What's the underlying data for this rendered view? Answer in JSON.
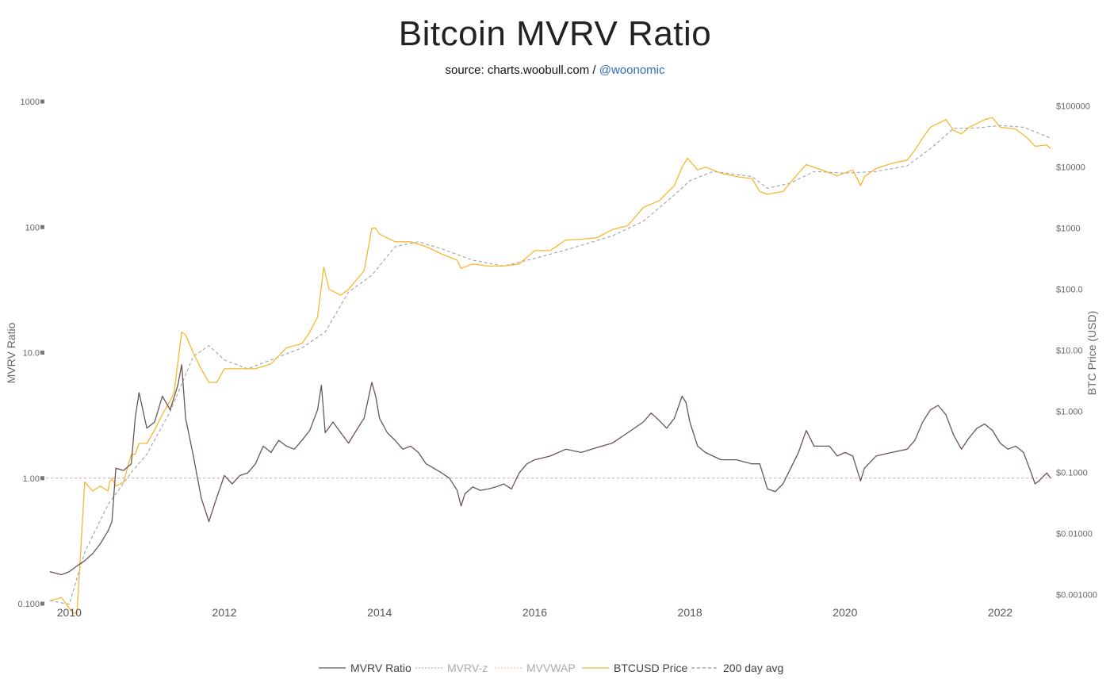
{
  "header": {
    "title": "Bitcoin MVRV Ratio",
    "source_prefix": "source: charts.woobull.com /",
    "source_handle": "@woonomic"
  },
  "colors": {
    "mvrv": "#6b5552",
    "mvrv_z": "#c8a3ae",
    "mvvwap": "#f3c8a6",
    "price": "#f7b731",
    "avg200": "#999999",
    "ref_line": "#c8a3ae"
  },
  "chart_data": {
    "type": "line",
    "title": "Bitcoin MVRV Ratio",
    "xlabel": "",
    "ylabel_left": "MVRV Ratio",
    "ylabel_right": "BTC Price (USD)",
    "x_range": [
      2009.7,
      2022.7
    ],
    "y_left_scale": "log",
    "y_left_range": [
      0.1,
      1000
    ],
    "y_right_scale": "log",
    "y_right_range": [
      0.0003,
      160000
    ],
    "x_ticks": [
      "2010",
      "2012",
      "2014",
      "2016",
      "2018",
      "2020",
      "2022"
    ],
    "y_left_ticks": [
      {
        "value": 1000,
        "label": "1000"
      },
      {
        "value": 100,
        "label": "100"
      },
      {
        "value": 10,
        "label": "10.0"
      },
      {
        "value": 1,
        "label": "1.00"
      },
      {
        "value": 0.1,
        "label": "0.100"
      }
    ],
    "y_right_ticks": [
      {
        "value": 100000,
        "label": "$100000"
      },
      {
        "value": 10000,
        "label": "$10000"
      },
      {
        "value": 1000,
        "label": "$1000"
      },
      {
        "value": 100,
        "label": "$100.0"
      },
      {
        "value": 10,
        "label": "$10.00"
      },
      {
        "value": 1,
        "label": "$1.000"
      },
      {
        "value": 0.1,
        "label": "$0.1000"
      },
      {
        "value": 0.01,
        "label": "$0.01000"
      },
      {
        "value": 0.001,
        "label": "$0.001000"
      }
    ],
    "reference_line": {
      "axis": "left",
      "value": 1.0
    },
    "legend_position": "bottom-center",
    "legend": [
      {
        "name": "MVRV Ratio",
        "style": "solid",
        "color_key": "mvrv",
        "dim": false
      },
      {
        "name": "MVRV-z",
        "style": "dotted",
        "color_key": "mvrv_z",
        "dim": true
      },
      {
        "name": "MVVWAP",
        "style": "dotted",
        "color_key": "mvvwap",
        "dim": true
      },
      {
        "name": "BTCUSD Price",
        "style": "solid",
        "color_key": "price",
        "dim": false
      },
      {
        "name": "200 day avg",
        "style": "dashed",
        "color_key": "avg200",
        "dim": false
      }
    ],
    "series": [
      {
        "name": "MVRV Ratio",
        "axis": "left",
        "x": [
          2009.75,
          2009.9,
          2010.0,
          2010.1,
          2010.2,
          2010.3,
          2010.4,
          2010.5,
          2010.55,
          2010.6,
          2010.7,
          2010.8,
          2010.85,
          2010.9,
          2011.0,
          2011.1,
          2011.2,
          2011.3,
          2011.4,
          2011.45,
          2011.5,
          2011.6,
          2011.7,
          2011.8,
          2011.9,
          2012.0,
          2012.1,
          2012.2,
          2012.3,
          2012.4,
          2012.5,
          2012.6,
          2012.7,
          2012.8,
          2012.9,
          2013.0,
          2013.1,
          2013.2,
          2013.25,
          2013.3,
          2013.4,
          2013.5,
          2013.6,
          2013.7,
          2013.8,
          2013.9,
          2013.95,
          2014.0,
          2014.1,
          2014.2,
          2014.3,
          2014.4,
          2014.5,
          2014.6,
          2014.7,
          2014.8,
          2014.9,
          2015.0,
          2015.05,
          2015.1,
          2015.2,
          2015.3,
          2015.4,
          2015.5,
          2015.6,
          2015.7,
          2015.8,
          2015.9,
          2016.0,
          2016.2,
          2016.4,
          2016.6,
          2016.8,
          2017.0,
          2017.2,
          2017.4,
          2017.5,
          2017.6,
          2017.7,
          2017.8,
          2017.9,
          2017.95,
          2018.0,
          2018.1,
          2018.2,
          2018.4,
          2018.6,
          2018.8,
          2018.9,
          2019.0,
          2019.1,
          2019.2,
          2019.3,
          2019.4,
          2019.5,
          2019.6,
          2019.8,
          2019.9,
          2020.0,
          2020.1,
          2020.2,
          2020.25,
          2020.4,
          2020.6,
          2020.8,
          2020.9,
          2021.0,
          2021.1,
          2021.2,
          2021.3,
          2021.4,
          2021.5,
          2021.6,
          2021.7,
          2021.8,
          2021.9,
          2022.0,
          2022.1,
          2022.2,
          2022.3,
          2022.4,
          2022.45,
          2022.5,
          2022.6,
          2022.65
        ],
        "y": [
          0.18,
          0.17,
          0.18,
          0.2,
          0.22,
          0.25,
          0.3,
          0.38,
          0.45,
          1.2,
          1.15,
          1.3,
          3.0,
          4.8,
          2.5,
          2.8,
          4.5,
          3.5,
          5.5,
          8.0,
          3.0,
          1.5,
          0.7,
          0.45,
          0.7,
          1.05,
          0.9,
          1.05,
          1.1,
          1.3,
          1.8,
          1.6,
          2.0,
          1.8,
          1.7,
          2.0,
          2.4,
          3.5,
          5.5,
          2.3,
          2.8,
          2.3,
          1.9,
          2.4,
          3.0,
          5.8,
          4.5,
          3.0,
          2.3,
          2.0,
          1.7,
          1.8,
          1.6,
          1.3,
          1.2,
          1.1,
          1.0,
          0.8,
          0.6,
          0.75,
          0.85,
          0.8,
          0.82,
          0.85,
          0.9,
          0.82,
          1.1,
          1.3,
          1.4,
          1.5,
          1.7,
          1.6,
          1.75,
          1.9,
          2.3,
          2.8,
          3.3,
          2.9,
          2.5,
          3.0,
          4.5,
          4.0,
          2.8,
          1.8,
          1.6,
          1.4,
          1.4,
          1.3,
          1.3,
          0.82,
          0.78,
          0.9,
          1.2,
          1.6,
          2.4,
          1.8,
          1.8,
          1.5,
          1.6,
          1.5,
          0.95,
          1.2,
          1.5,
          1.6,
          1.7,
          2.0,
          2.8,
          3.5,
          3.8,
          3.2,
          2.2,
          1.7,
          2.1,
          2.5,
          2.7,
          2.4,
          1.9,
          1.7,
          1.8,
          1.6,
          1.1,
          0.9,
          0.95,
          1.1,
          1.0
        ]
      },
      {
        "name": "BTCUSD Price",
        "axis": "right",
        "x": [
          2009.75,
          2009.9,
          2010.0,
          2010.05,
          2010.1,
          2010.2,
          2010.3,
          2010.4,
          2010.5,
          2010.52,
          2010.55,
          2010.6,
          2010.7,
          2010.8,
          2010.85,
          2010.9,
          2011.0,
          2011.1,
          2011.2,
          2011.3,
          2011.35,
          2011.45,
          2011.5,
          2011.6,
          2011.7,
          2011.8,
          2011.9,
          2012.0,
          2012.2,
          2012.4,
          2012.6,
          2012.8,
          2013.0,
          2013.1,
          2013.2,
          2013.28,
          2013.35,
          2013.5,
          2013.6,
          2013.8,
          2013.9,
          2013.95,
          2014.0,
          2014.2,
          2014.4,
          2014.6,
          2014.8,
          2015.0,
          2015.05,
          2015.2,
          2015.4,
          2015.6,
          2015.8,
          2016.0,
          2016.2,
          2016.4,
          2016.6,
          2016.8,
          2017.0,
          2017.2,
          2017.4,
          2017.6,
          2017.8,
          2017.9,
          2017.97,
          2018.1,
          2018.2,
          2018.4,
          2018.6,
          2018.8,
          2018.9,
          2019.0,
          2019.2,
          2019.4,
          2019.5,
          2019.7,
          2019.9,
          2020.1,
          2020.2,
          2020.25,
          2020.4,
          2020.6,
          2020.8,
          2020.9,
          2021.0,
          2021.1,
          2021.3,
          2021.4,
          2021.5,
          2021.6,
          2021.8,
          2021.9,
          2022.0,
          2022.2,
          2022.35,
          2022.45,
          2022.6,
          2022.65
        ],
        "y": [
          0.0008,
          0.0009,
          0.0006,
          0.0005,
          0.0005,
          0.07,
          0.05,
          0.06,
          0.05,
          0.07,
          0.08,
          0.06,
          0.07,
          0.2,
          0.2,
          0.3,
          0.3,
          0.5,
          0.9,
          1.5,
          2,
          20,
          18,
          9,
          5,
          3,
          3,
          5,
          5,
          5,
          6,
          11,
          13,
          20,
          35,
          230,
          100,
          80,
          100,
          200,
          1000,
          1000,
          800,
          600,
          600,
          500,
          380,
          300,
          220,
          260,
          240,
          240,
          260,
          430,
          430,
          640,
          660,
          700,
          950,
          1100,
          2200,
          2800,
          5000,
          10000,
          14000,
          9000,
          10000,
          8000,
          7000,
          6500,
          4000,
          3600,
          4000,
          8000,
          11000,
          9000,
          7200,
          9000,
          5000,
          7000,
          9500,
          11500,
          13000,
          19000,
          30000,
          45000,
          60000,
          40000,
          35000,
          45000,
          60000,
          65000,
          45000,
          42000,
          30000,
          22000,
          23000,
          20000
        ]
      },
      {
        "name": "200 day avg",
        "axis": "right",
        "x": [
          2009.75,
          2010.0,
          2010.2,
          2010.5,
          2010.8,
          2011.0,
          2011.3,
          2011.6,
          2011.8,
          2012.0,
          2012.3,
          2012.6,
          2013.0,
          2013.3,
          2013.6,
          2013.9,
          2014.2,
          2014.5,
          2014.8,
          2015.2,
          2015.6,
          2016.0,
          2016.5,
          2017.0,
          2017.4,
          2017.8,
          2018.0,
          2018.3,
          2018.8,
          2019.0,
          2019.3,
          2019.6,
          2020.0,
          2020.4,
          2020.8,
          2021.1,
          2021.4,
          2021.7,
          2022.0,
          2022.3,
          2022.65
        ],
        "y": [
          0.0008,
          0.0007,
          0.005,
          0.03,
          0.1,
          0.2,
          1,
          8,
          12,
          7,
          5,
          7,
          11,
          20,
          90,
          170,
          500,
          600,
          460,
          300,
          240,
          320,
          480,
          750,
          1300,
          3500,
          6000,
          8500,
          7000,
          4500,
          5500,
          8500,
          8000,
          8500,
          10500,
          20000,
          43000,
          44000,
          48000,
          45000,
          30000
        ]
      }
    ]
  }
}
